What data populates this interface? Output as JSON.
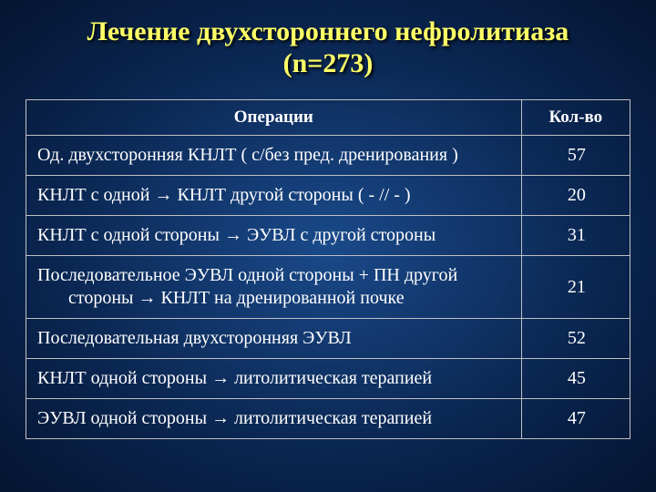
{
  "title_line1": "Лечение двухстороннего нефролитиаза",
  "title_line2": "(n=273)",
  "table": {
    "header_op": "Операции",
    "header_count": "Кол-во",
    "rows": [
      {
        "op": "Од. двухсторонняя КНЛТ ( с/без пред. дренирования )",
        "count": "57"
      },
      {
        "op": "КНЛТ с одной → КНЛТ другой стороны  ( - // - )",
        "count": "20"
      },
      {
        "op": "КНЛТ с одной стороны → ЭУВЛ с другой стороны",
        "count": "31"
      },
      {
        "op_line1": "Последовательное  ЭУВЛ  одной  стороны  +  ПН  другой",
        "op_line2": "стороны → КНЛТ на дренированной почке",
        "count": "21",
        "multiline": true
      },
      {
        "op": "Последовательная двухсторонняя ЭУВЛ",
        "count": "52"
      },
      {
        "op": "КНЛТ одной стороны  → литолитическая терапией",
        "count": "45"
      },
      {
        "op": "ЭУВЛ одной стороны → литолитическая терапией",
        "count": "47"
      }
    ]
  },
  "colors": {
    "title_color": "#ffff66",
    "text_color": "#ffffff",
    "border_color": "#c0c0c0",
    "bg_center": "#1a4a8a",
    "bg_edge": "#041530"
  }
}
